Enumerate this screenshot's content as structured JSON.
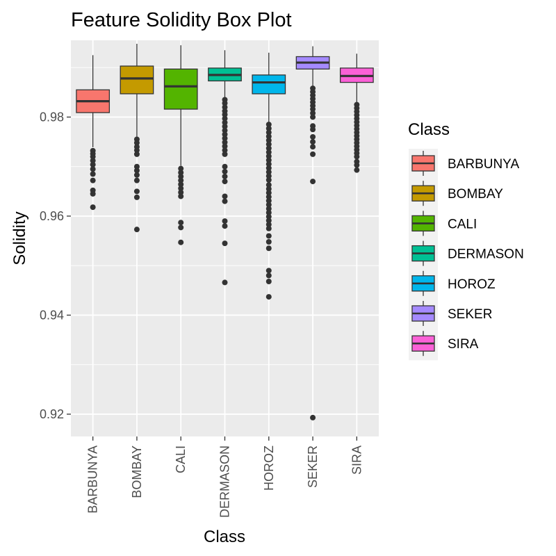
{
  "chart_data": {
    "type": "box",
    "title": "Feature Solidity Box Plot",
    "xlabel": "Class",
    "ylabel": "Solidity",
    "ylim": [
      0.9155,
      0.9955
    ],
    "yticks": [
      0.92,
      0.94,
      0.96,
      0.98
    ],
    "ytick_labels": [
      "0.92",
      "0.94",
      "0.96",
      "0.98"
    ],
    "grid": true,
    "legend": {
      "title": "Class",
      "position": "right"
    },
    "categories": [
      "BARBUNYA",
      "BOMBAY",
      "CALI",
      "DERMASON",
      "HOROZ",
      "SEKER",
      "SIRA"
    ],
    "series": [
      {
        "name": "BARBUNYA",
        "color": "#F8766D",
        "min": 0.9739,
        "q1": 0.9809,
        "median": 0.9832,
        "q3": 0.9855,
        "max": 0.9925,
        "outliers": [
          0.9732,
          0.9726,
          0.972,
          0.9712,
          0.9704,
          0.9695,
          0.9685,
          0.9672,
          0.9652,
          0.9645,
          0.9618
        ]
      },
      {
        "name": "BOMBAY",
        "color": "#C49A00",
        "min": 0.9759,
        "q1": 0.9847,
        "median": 0.9878,
        "q3": 0.9903,
        "max": 0.9948,
        "outliers": [
          0.9755,
          0.9748,
          0.974,
          0.9733,
          0.9725,
          0.97,
          0.9692,
          0.9683,
          0.9672,
          0.965,
          0.9638,
          0.9573
        ]
      },
      {
        "name": "CALI",
        "color": "#53B400",
        "min": 0.9702,
        "q1": 0.9816,
        "median": 0.9862,
        "q3": 0.9897,
        "max": 0.9945,
        "outliers": [
          0.9696,
          0.9688,
          0.968,
          0.9672,
          0.9664,
          0.9656,
          0.9648,
          0.964,
          0.9587,
          0.9577,
          0.9547
        ]
      },
      {
        "name": "DERMASON",
        "color": "#00C094",
        "min": 0.9838,
        "q1": 0.9873,
        "median": 0.9885,
        "q3": 0.9899,
        "max": 0.9935,
        "outliers": [
          0.9835,
          0.9828,
          0.982,
          0.9812,
          0.9805,
          0.9797,
          0.9789,
          0.9781,
          0.9773,
          0.9765,
          0.9757,
          0.9749,
          0.9741,
          0.9733,
          0.9725,
          0.97,
          0.969,
          0.968,
          0.967,
          0.964,
          0.963,
          0.959,
          0.958,
          0.9545,
          0.9466
        ]
      },
      {
        "name": "HOROZ",
        "color": "#00B6EB",
        "min": 0.9787,
        "q1": 0.9847,
        "median": 0.987,
        "q3": 0.9885,
        "max": 0.993,
        "outliers": [
          0.9785,
          0.9777,
          0.9769,
          0.9761,
          0.9753,
          0.9745,
          0.9737,
          0.9729,
          0.9721,
          0.9713,
          0.9705,
          0.9697,
          0.9689,
          0.9681,
          0.9673,
          0.9663,
          0.9655,
          0.9647,
          0.9639,
          0.9631,
          0.9623,
          0.9615,
          0.9607,
          0.9599,
          0.9591,
          0.9583,
          0.9575,
          0.956,
          0.9548,
          0.9535,
          0.949,
          0.948,
          0.9468,
          0.9437
        ]
      },
      {
        "name": "SEKER",
        "color": "#A58AFF",
        "min": 0.9862,
        "q1": 0.9897,
        "median": 0.991,
        "q3": 0.9922,
        "max": 0.9943,
        "outliers": [
          0.9858,
          0.9851,
          0.9844,
          0.9837,
          0.983,
          0.9823,
          0.9816,
          0.9808,
          0.98,
          0.9782,
          0.9775,
          0.976,
          0.975,
          0.974,
          0.9725,
          0.967,
          0.9193
        ]
      },
      {
        "name": "SIRA",
        "color": "#FB61D7",
        "min": 0.9828,
        "q1": 0.987,
        "median": 0.9883,
        "q3": 0.9899,
        "max": 0.9928,
        "outliers": [
          0.9825,
          0.9818,
          0.9811,
          0.9804,
          0.9797,
          0.979,
          0.9783,
          0.9776,
          0.9769,
          0.9762,
          0.9755,
          0.9748,
          0.9741,
          0.9734,
          0.9727,
          0.972,
          0.971,
          0.9703,
          0.9693
        ]
      }
    ]
  }
}
